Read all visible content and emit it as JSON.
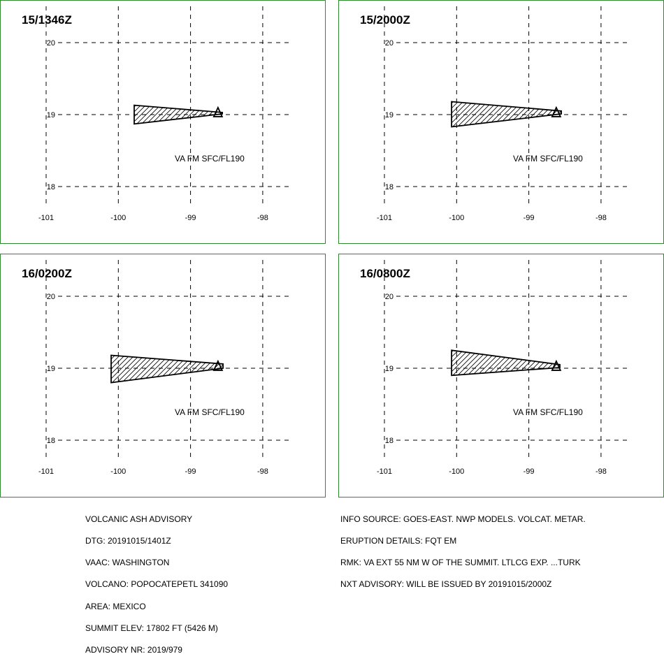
{
  "panels": [
    {
      "title": "15/1346Z",
      "label": "VA FM SFC/FL190",
      "ash_polygon": [
        [
          -99.78,
          19.13
        ],
        [
          -98.56,
          19.03
        ],
        [
          -98.56,
          19.01
        ],
        [
          -99.78,
          18.87
        ]
      ]
    },
    {
      "title": "15/2000Z",
      "label": "VA FM SFC/FL190",
      "ash_polygon": [
        [
          -100.07,
          19.18
        ],
        [
          -98.55,
          19.05
        ],
        [
          -98.55,
          19.01
        ],
        [
          -100.07,
          18.83
        ]
      ]
    },
    {
      "title": "16/0200Z",
      "label": "VA FM SFC/FL190",
      "ash_polygon": [
        [
          -100.1,
          19.18
        ],
        [
          -98.55,
          19.06
        ],
        [
          -98.55,
          19.0
        ],
        [
          -100.1,
          18.8
        ]
      ]
    },
    {
      "title": "16/0800Z",
      "label": "VA FM SFC/FL190",
      "ash_polygon": [
        [
          -100.07,
          19.25
        ],
        [
          -98.57,
          19.05
        ],
        [
          -98.57,
          19.01
        ],
        [
          -100.07,
          18.9
        ]
      ]
    }
  ],
  "map": {
    "lon_ticks": [
      "-101",
      "-100",
      "-99",
      "-98"
    ],
    "lat_ticks": [
      "20",
      "19",
      "18"
    ],
    "volcano": {
      "lon": -98.62,
      "lat": 19.02
    },
    "frame_color": "#2e8b2e"
  },
  "footer_left": [
    "VOLCANIC ASH ADVISORY",
    "DTG: 20191015/1401Z",
    "VAAC: WASHINGTON",
    "VOLCANO: POPOCATEPETL 341090",
    "AREA: MEXICO",
    "SUMMIT ELEV: 17802 FT (5426 M)",
    "ADVISORY NR: 2019/979"
  ],
  "footer_right": [
    "INFO SOURCE: GOES-EAST. NWP MODELS. VOLCAT. METAR.",
    "ERUPTION DETAILS: FQT EM",
    "RMK: VA EXT 55 NM W OF THE SUMMIT. LTLCG EXP. ...TURK",
    "NXT ADVISORY: WILL BE ISSUED BY 20191015/2000Z"
  ]
}
